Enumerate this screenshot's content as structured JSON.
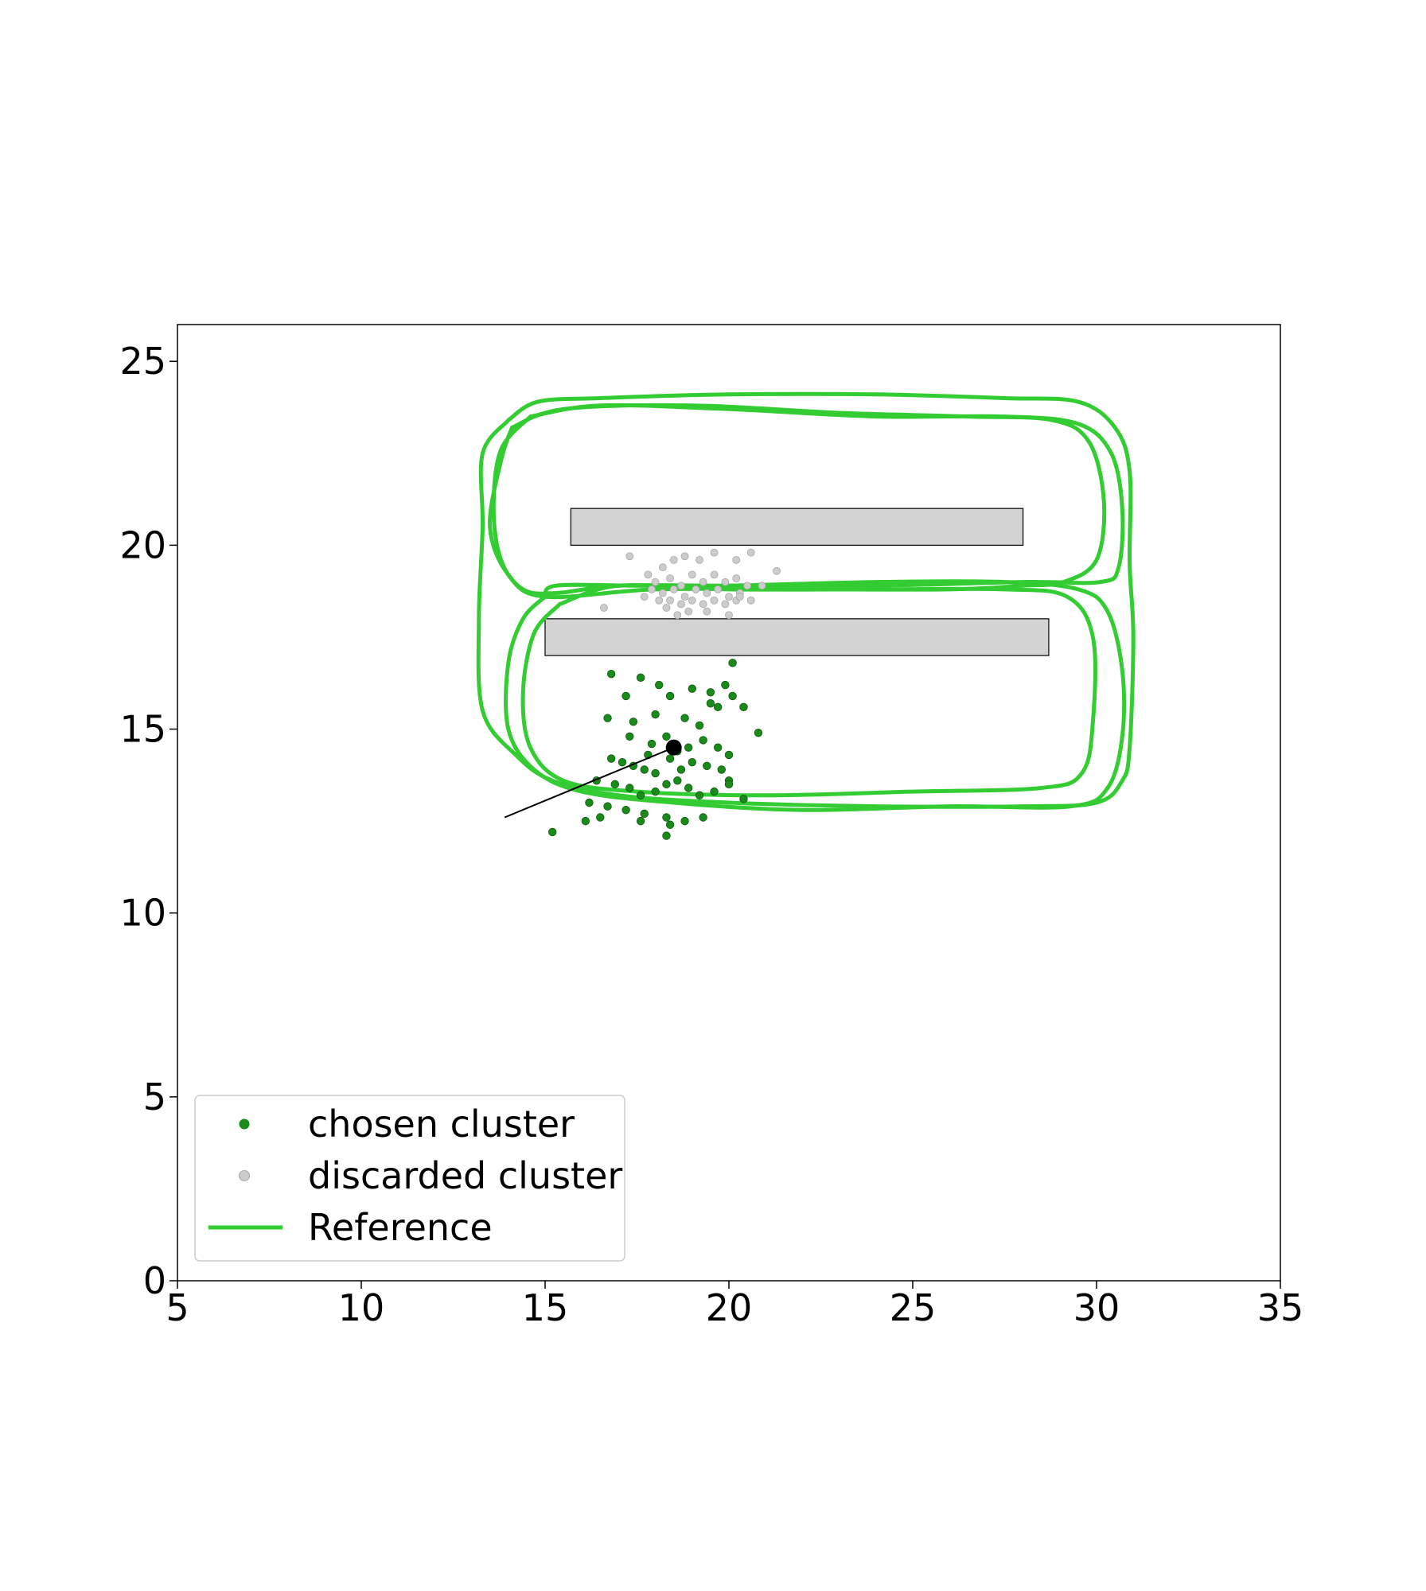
{
  "chart_data": {
    "type": "scatter",
    "title": "",
    "xlabel": "",
    "ylabel": "",
    "xlim": [
      5,
      35
    ],
    "ylim": [
      0,
      26
    ],
    "x_ticks": [
      5,
      10,
      15,
      20,
      25,
      30,
      35
    ],
    "y_ticks": [
      0,
      5,
      10,
      15,
      20,
      25
    ],
    "x_tick_labels": [
      "5",
      "10",
      "15",
      "20",
      "25",
      "30",
      "35"
    ],
    "y_tick_labels": [
      "0",
      "5",
      "10",
      "15",
      "20",
      "25"
    ],
    "grid": false,
    "legend_position": "lower-left",
    "legend": [
      {
        "label": "chosen cluster",
        "marker": "dot",
        "color": "#1a8a1a"
      },
      {
        "label": "discarded cluster",
        "marker": "dot",
        "color": "#cccccc"
      },
      {
        "label": "Reference",
        "marker": "line",
        "color": "#33cc33"
      }
    ],
    "obstacles": [
      {
        "x0": 15.7,
        "x1": 28.0,
        "y0": 20.0,
        "y1": 21.0,
        "fill": "#d3d3d3"
      },
      {
        "x0": 15.0,
        "x1": 28.7,
        "y0": 17.0,
        "y1": 18.0,
        "fill": "#d3d3d3"
      }
    ],
    "series": [
      {
        "name": "chosen cluster",
        "color": "#1a8a1a",
        "points": [
          [
            16.8,
            16.5
          ],
          [
            17.2,
            15.9
          ],
          [
            17.6,
            16.4
          ],
          [
            18.1,
            16.2
          ],
          [
            18.4,
            15.9
          ],
          [
            19.0,
            16.1
          ],
          [
            19.5,
            16.0
          ],
          [
            19.9,
            16.2
          ],
          [
            20.1,
            16.8
          ],
          [
            20.1,
            15.9
          ],
          [
            19.7,
            15.6
          ],
          [
            20.4,
            15.6
          ],
          [
            17.4,
            15.2
          ],
          [
            18.0,
            15.4
          ],
          [
            18.8,
            15.3
          ],
          [
            19.2,
            15.1
          ],
          [
            19.5,
            15.7
          ],
          [
            20.8,
            14.9
          ],
          [
            16.7,
            15.3
          ],
          [
            17.3,
            14.8
          ],
          [
            17.9,
            14.6
          ],
          [
            18.3,
            14.8
          ],
          [
            18.9,
            14.5
          ],
          [
            19.3,
            14.7
          ],
          [
            19.7,
            14.5
          ],
          [
            20.0,
            14.3
          ],
          [
            16.8,
            14.2
          ],
          [
            17.1,
            14.1
          ],
          [
            17.4,
            14.0
          ],
          [
            17.7,
            13.9
          ],
          [
            18.0,
            13.8
          ],
          [
            18.4,
            14.2
          ],
          [
            18.7,
            13.9
          ],
          [
            19.0,
            14.1
          ],
          [
            19.4,
            14.0
          ],
          [
            19.8,
            13.9
          ],
          [
            20.0,
            13.6
          ],
          [
            16.4,
            13.6
          ],
          [
            16.9,
            13.5
          ],
          [
            17.3,
            13.4
          ],
          [
            17.6,
            13.2
          ],
          [
            18.0,
            13.3
          ],
          [
            18.3,
            13.5
          ],
          [
            18.6,
            13.6
          ],
          [
            18.9,
            13.4
          ],
          [
            19.2,
            13.2
          ],
          [
            19.6,
            13.3
          ],
          [
            20.0,
            13.5
          ],
          [
            20.4,
            13.1
          ],
          [
            16.2,
            13.0
          ],
          [
            16.7,
            12.9
          ],
          [
            17.2,
            12.8
          ],
          [
            17.7,
            12.7
          ],
          [
            18.3,
            12.6
          ],
          [
            18.8,
            12.5
          ],
          [
            19.3,
            12.6
          ],
          [
            16.1,
            12.5
          ],
          [
            16.5,
            12.6
          ],
          [
            17.6,
            12.5
          ],
          [
            18.4,
            12.4
          ],
          [
            15.2,
            12.2
          ],
          [
            18.3,
            12.1
          ],
          [
            18.5,
            14.6
          ],
          [
            18.6,
            14.4
          ],
          [
            17.8,
            14.3
          ]
        ]
      },
      {
        "name": "discarded cluster",
        "color": "#cccccc",
        "points": [
          [
            17.3,
            19.7
          ],
          [
            18.2,
            19.4
          ],
          [
            18.5,
            19.6
          ],
          [
            18.8,
            19.7
          ],
          [
            19.2,
            19.6
          ],
          [
            19.6,
            19.8
          ],
          [
            20.2,
            19.6
          ],
          [
            20.6,
            19.8
          ],
          [
            21.3,
            19.3
          ],
          [
            17.8,
            19.2
          ],
          [
            18.0,
            19.0
          ],
          [
            18.4,
            19.1
          ],
          [
            18.7,
            18.9
          ],
          [
            19.0,
            19.2
          ],
          [
            19.3,
            19.0
          ],
          [
            19.6,
            19.2
          ],
          [
            19.9,
            19.0
          ],
          [
            20.2,
            19.1
          ],
          [
            20.5,
            18.9
          ],
          [
            20.9,
            18.9
          ],
          [
            17.9,
            18.8
          ],
          [
            18.2,
            18.7
          ],
          [
            18.5,
            18.8
          ],
          [
            18.8,
            18.6
          ],
          [
            19.1,
            18.8
          ],
          [
            19.4,
            18.7
          ],
          [
            19.7,
            18.8
          ],
          [
            20.0,
            18.6
          ],
          [
            20.3,
            18.7
          ],
          [
            20.6,
            18.5
          ],
          [
            18.1,
            18.5
          ],
          [
            18.4,
            18.5
          ],
          [
            18.7,
            18.4
          ],
          [
            19.0,
            18.5
          ],
          [
            19.3,
            18.4
          ],
          [
            19.6,
            18.5
          ],
          [
            19.9,
            18.4
          ],
          [
            20.2,
            18.5
          ],
          [
            16.6,
            18.3
          ],
          [
            18.3,
            18.3
          ],
          [
            18.9,
            18.2
          ],
          [
            19.4,
            18.2
          ],
          [
            20.0,
            18.1
          ],
          [
            18.6,
            18.1
          ],
          [
            20.3,
            18.6
          ],
          [
            17.7,
            18.6
          ]
        ]
      }
    ],
    "robot": {
      "x": 18.5,
      "y": 14.5,
      "heading_to": [
        13.9,
        12.6
      ],
      "color": "#000000"
    },
    "reference": {
      "name": "Reference",
      "color": "#33cc33",
      "loops": [
        [
          [
            14.0,
            23.4
          ],
          [
            14.8,
            23.9
          ],
          [
            16.5,
            24.0
          ],
          [
            20.0,
            24.1
          ],
          [
            24.0,
            24.1
          ],
          [
            27.5,
            24.0
          ],
          [
            29.5,
            23.9
          ],
          [
            30.5,
            23.2
          ],
          [
            30.9,
            22.0
          ],
          [
            30.9,
            19.5
          ],
          [
            31.0,
            17.5
          ],
          [
            30.9,
            14.5
          ],
          [
            30.7,
            13.6
          ],
          [
            30.0,
            13.0
          ],
          [
            28.0,
            12.9
          ],
          [
            24.0,
            12.9
          ],
          [
            20.0,
            13.0
          ],
          [
            17.0,
            13.2
          ],
          [
            15.2,
            13.6
          ],
          [
            14.2,
            14.3
          ],
          [
            13.3,
            15.5
          ],
          [
            13.2,
            18.0
          ],
          [
            13.3,
            20.5
          ],
          [
            13.3,
            22.5
          ],
          [
            14.0,
            23.4
          ]
        ],
        [
          [
            14.6,
            23.5
          ],
          [
            16.5,
            23.8
          ],
          [
            20.0,
            23.7
          ],
          [
            24.0,
            23.5
          ],
          [
            27.5,
            23.5
          ],
          [
            29.5,
            23.3
          ],
          [
            30.4,
            22.5
          ],
          [
            30.7,
            21.0
          ],
          [
            30.6,
            19.4
          ],
          [
            30.1,
            19.0
          ],
          [
            28.0,
            19.0
          ],
          [
            24.0,
            18.9
          ],
          [
            20.0,
            18.9
          ],
          [
            17.0,
            18.9
          ],
          [
            15.3,
            18.7
          ],
          [
            14.4,
            18.8
          ],
          [
            13.8,
            19.6
          ],
          [
            13.6,
            21.0
          ],
          [
            13.8,
            22.6
          ],
          [
            14.6,
            23.5
          ]
        ],
        [
          [
            15.0,
            18.6
          ],
          [
            15.3,
            18.9
          ],
          [
            17.5,
            18.9
          ],
          [
            20.0,
            18.9
          ],
          [
            24.0,
            19.0
          ],
          [
            27.5,
            19.0
          ],
          [
            29.5,
            18.8
          ],
          [
            30.3,
            18.2
          ],
          [
            30.7,
            16.6
          ],
          [
            30.7,
            14.8
          ],
          [
            30.3,
            13.4
          ],
          [
            29.3,
            12.9
          ],
          [
            26.0,
            12.9
          ],
          [
            22.0,
            12.8
          ],
          [
            18.5,
            13.0
          ],
          [
            16.0,
            13.3
          ],
          [
            14.7,
            13.9
          ],
          [
            14.0,
            15.0
          ],
          [
            14.0,
            16.8
          ],
          [
            14.4,
            18.0
          ],
          [
            15.0,
            18.6
          ]
        ],
        [
          [
            14.1,
            23.2
          ],
          [
            15.5,
            23.7
          ],
          [
            19.0,
            23.8
          ],
          [
            23.0,
            23.6
          ],
          [
            26.5,
            23.5
          ],
          [
            28.8,
            23.4
          ],
          [
            29.8,
            22.8
          ],
          [
            30.2,
            21.2
          ],
          [
            30.0,
            19.6
          ],
          [
            29.1,
            19.0
          ],
          [
            28.0,
            18.9
          ],
          [
            26.0,
            18.8
          ],
          [
            22.0,
            18.8
          ],
          [
            18.0,
            18.8
          ],
          [
            15.0,
            18.6
          ],
          [
            14.0,
            19.2
          ],
          [
            13.5,
            20.5
          ],
          [
            13.8,
            22.3
          ],
          [
            14.1,
            23.2
          ]
        ],
        [
          [
            15.4,
            18.4
          ],
          [
            17.0,
            18.9
          ],
          [
            20.0,
            18.8
          ],
          [
            24.0,
            18.8
          ],
          [
            27.5,
            18.8
          ],
          [
            29.2,
            18.6
          ],
          [
            29.9,
            17.5
          ],
          [
            29.9,
            15.2
          ],
          [
            29.6,
            13.8
          ],
          [
            28.5,
            13.4
          ],
          [
            25.0,
            13.3
          ],
          [
            21.0,
            13.2
          ],
          [
            17.5,
            13.3
          ],
          [
            15.5,
            13.6
          ],
          [
            14.6,
            14.5
          ],
          [
            14.4,
            16.0
          ],
          [
            14.7,
            17.6
          ],
          [
            15.4,
            18.4
          ]
        ]
      ]
    }
  }
}
